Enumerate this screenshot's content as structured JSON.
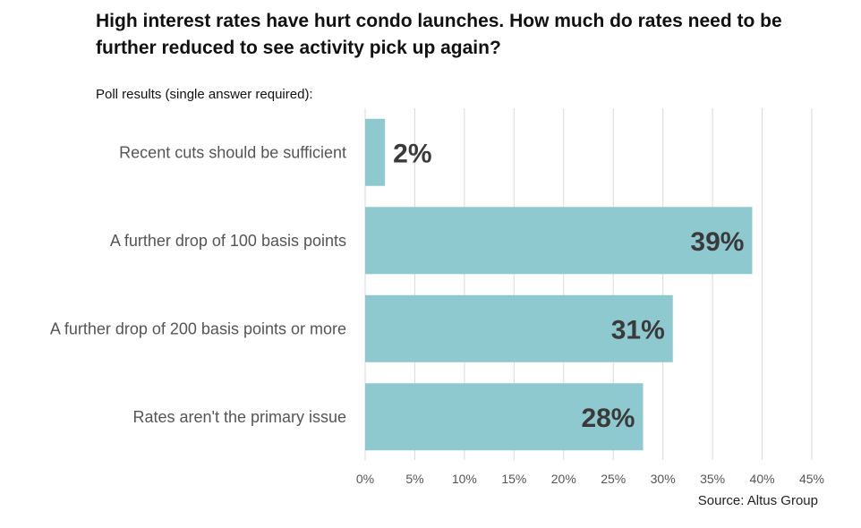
{
  "chart_data": {
    "type": "bar",
    "orientation": "horizontal",
    "title": "High interest rates have hurt condo launches. How much do rates need to be further reduced to see activity pick up again?",
    "subtitle": "Poll results (single answer required):",
    "categories": [
      "Recent cuts should be sufficient",
      "A further drop of 100 basis points",
      "A further drop of 200 basis points or more",
      "Rates aren't the primary issue"
    ],
    "values": [
      2,
      39,
      31,
      28
    ],
    "value_labels": [
      "2%",
      "39%",
      "31%",
      "28%"
    ],
    "xlim": [
      0,
      45
    ],
    "x_ticks": [
      0,
      5,
      10,
      15,
      20,
      25,
      30,
      35,
      40,
      45
    ],
    "x_tick_labels": [
      "0%",
      "5%",
      "10%",
      "15%",
      "20%",
      "25%",
      "30%",
      "35%",
      "40%",
      "45%"
    ],
    "grid": true,
    "bar_color": "#8fc9d0",
    "source": "Source:  Altus Group"
  }
}
